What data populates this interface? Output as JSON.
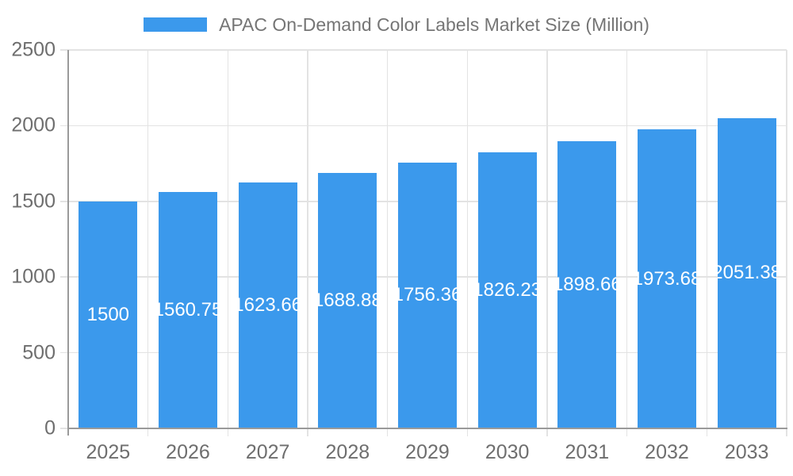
{
  "chart_data": {
    "type": "bar",
    "title": "APAC On-Demand Color Labels Market Size (Million)",
    "legend": {
      "position": "top",
      "entries": [
        {
          "label": "APAC On-Demand Color Labels Market Size (Million)",
          "color": "#3B99EC"
        }
      ]
    },
    "categories": [
      "2025",
      "2026",
      "2027",
      "2028",
      "2029",
      "2030",
      "2031",
      "2032",
      "2033"
    ],
    "series": [
      {
        "name": "APAC On-Demand Color Labels Market Size (Million)",
        "values": [
          1500,
          1560.75,
          1623.66,
          1688.88,
          1756.36,
          1826.23,
          1898.66,
          1973.68,
          2051.38
        ]
      }
    ],
    "value_labels": [
      "1500",
      "1560.75",
      "1623.66",
      "1688.88",
      "1756.36",
      "1826.23",
      "1898.66",
      "1973.68",
      "2051.38"
    ],
    "xlabel": "",
    "ylabel": "",
    "ylim": [
      0,
      2500
    ],
    "y_ticks": [
      0,
      500,
      1000,
      1500,
      2000,
      2500
    ],
    "grid": true,
    "legend_visible": true,
    "colors": {
      "bar": "#3B99EC",
      "grid": "#E3E3E3",
      "axis": "#9A9A9A",
      "tick_label": "#6E6E6E",
      "legend_text": "#757575",
      "value_label": "#FFFFFF",
      "background": "#FFFFFF"
    }
  }
}
